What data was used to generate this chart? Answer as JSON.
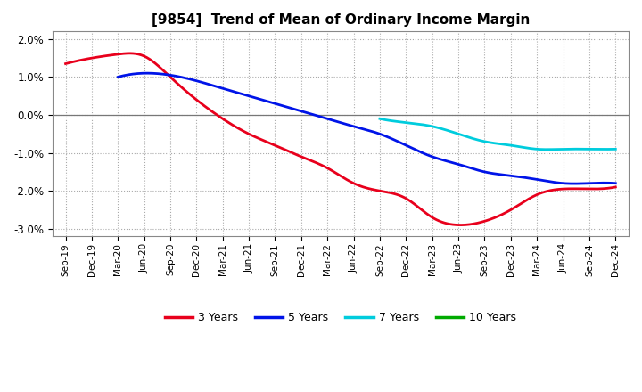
{
  "title": "[9854]  Trend of Mean of Ordinary Income Margin",
  "title_fontsize": 11,
  "ylim": [
    -0.032,
    0.022
  ],
  "yticks": [
    -0.03,
    -0.02,
    -0.01,
    0.0,
    0.01,
    0.02
  ],
  "background_color": "#ffffff",
  "plot_bg_color": "#ffffff",
  "grid_color": "#aaaaaa",
  "x_labels": [
    "Sep-19",
    "Dec-19",
    "Mar-20",
    "Jun-20",
    "Sep-20",
    "Dec-20",
    "Mar-21",
    "Jun-21",
    "Sep-21",
    "Dec-21",
    "Mar-22",
    "Jun-22",
    "Sep-22",
    "Dec-22",
    "Mar-23",
    "Jun-23",
    "Sep-23",
    "Dec-23",
    "Mar-24",
    "Jun-24",
    "Sep-24",
    "Dec-24"
  ],
  "series": {
    "3 Years": {
      "color": "#e8001c",
      "linewidth": 2.0,
      "values": [
        0.0135,
        0.015,
        0.016,
        0.0155,
        0.01,
        0.004,
        -0.001,
        -0.005,
        -0.008,
        -0.011,
        -0.014,
        -0.018,
        -0.02,
        -0.022,
        -0.027,
        -0.029,
        -0.028,
        -0.025,
        -0.021,
        -0.0195,
        -0.0195,
        -0.019
      ]
    },
    "5 Years": {
      "color": "#0014e8",
      "linewidth": 2.0,
      "values": [
        null,
        null,
        0.01,
        0.011,
        0.0105,
        0.009,
        0.007,
        0.005,
        0.003,
        0.001,
        -0.001,
        -0.003,
        -0.005,
        -0.008,
        -0.011,
        -0.013,
        -0.015,
        -0.016,
        -0.017,
        -0.018,
        -0.018,
        -0.018
      ]
    },
    "7 Years": {
      "color": "#00ccdd",
      "linewidth": 2.0,
      "values": [
        null,
        null,
        null,
        null,
        null,
        null,
        null,
        null,
        null,
        null,
        null,
        null,
        -0.001,
        -0.002,
        -0.003,
        -0.005,
        -0.007,
        -0.008,
        -0.009,
        -0.009,
        -0.009,
        -0.009
      ]
    },
    "10 Years": {
      "color": "#00aa00",
      "linewidth": 2.0,
      "values": [
        null,
        null,
        null,
        null,
        null,
        null,
        null,
        null,
        null,
        null,
        null,
        null,
        null,
        null,
        null,
        null,
        null,
        null,
        null,
        null,
        null,
        null
      ]
    }
  },
  "legend_labels": [
    "3 Years",
    "5 Years",
    "7 Years",
    "10 Years"
  ],
  "legend_colors": [
    "#e8001c",
    "#0014e8",
    "#00ccdd",
    "#00aa00"
  ]
}
